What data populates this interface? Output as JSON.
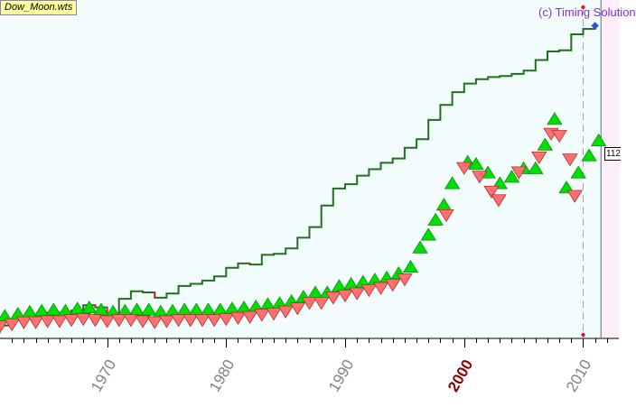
{
  "file_badge": "Dow_Moon.wts",
  "copyright": "(c) Timing Solution",
  "value_tag": "112",
  "colors": {
    "background": "#f2fcfc",
    "future_background": "#fdeefa",
    "price_line": "#207020",
    "price_down": "#e02020",
    "up_triangle": "#00e000",
    "down_triangle": "#ff7070",
    "today_line": "#5a8fa6",
    "highlight_year": "#8b0000"
  },
  "chart_data": {
    "type": "line",
    "title": "",
    "xlabel": "",
    "ylabel": "",
    "x_ticks": [
      "1970",
      "1980",
      "1990",
      "2000",
      "2010"
    ],
    "highlighted_tick": "2000",
    "xlim": [
      1961,
      2013
    ],
    "today_year": 2010,
    "future_start_year": 2011.5,
    "series": [
      {
        "points": [
          [
            1961.0,
            0.0
          ],
          [
            1962.0,
            0.25
          ],
          [
            1963.0,
            0.4
          ],
          [
            1964.0,
            0.5
          ],
          [
            1965.0,
            0.6
          ],
          [
            1966.0,
            0.55
          ],
          [
            1967.0,
            0.7
          ],
          [
            1968.0,
            0.95
          ],
          [
            1969.0,
            0.85
          ],
          [
            1970.0,
            0.5
          ],
          [
            1971.0,
            1.25
          ],
          [
            1972.0,
            1.6
          ],
          [
            1973.0,
            1.55
          ],
          [
            1974.0,
            1.3
          ],
          [
            1975.0,
            1.5
          ],
          [
            1976.0,
            1.85
          ],
          [
            1977.0,
            1.95
          ],
          [
            1978.0,
            2.1
          ],
          [
            1979.0,
            2.3
          ],
          [
            1980.0,
            2.7
          ],
          [
            1981.0,
            2.9
          ],
          [
            1982.0,
            2.85
          ],
          [
            1983.0,
            3.3
          ],
          [
            1984.0,
            3.35
          ],
          [
            1985.0,
            3.6
          ],
          [
            1986.0,
            4.1
          ],
          [
            1987.0,
            4.6
          ],
          [
            1988.0,
            5.6
          ],
          [
            1989.0,
            6.4
          ],
          [
            1990.0,
            6.6
          ],
          [
            1991.0,
            7.0
          ],
          [
            1992.0,
            7.3
          ],
          [
            1993.0,
            7.6
          ],
          [
            1994.0,
            7.8
          ],
          [
            1995.0,
            8.3
          ],
          [
            1996.0,
            8.7
          ],
          [
            1997.0,
            9.6
          ],
          [
            1998.0,
            10.3
          ],
          [
            1999.0,
            10.9
          ],
          [
            2000.0,
            11.3
          ],
          [
            2001.0,
            11.5
          ],
          [
            2002.0,
            11.6
          ],
          [
            2003.0,
            11.65
          ],
          [
            2004.0,
            11.75
          ],
          [
            2005.0,
            11.9
          ],
          [
            2006.0,
            12.4
          ],
          [
            2007.0,
            12.8
          ],
          [
            2008.0,
            12.85
          ],
          [
            2009.0,
            13.6
          ],
          [
            2010.0,
            13.85
          ],
          [
            2011.0,
            14.0
          ]
        ]
      }
    ],
    "up_triangles": [
      [
        1961.4,
        0.4
      ],
      [
        1962.5,
        0.5
      ],
      [
        1963.5,
        0.6
      ],
      [
        1964.5,
        0.65
      ],
      [
        1965.5,
        0.7
      ],
      [
        1966.5,
        0.65
      ],
      [
        1967.5,
        0.75
      ],
      [
        1968.5,
        0.8
      ],
      [
        1969.5,
        0.7
      ],
      [
        1970.5,
        0.6
      ],
      [
        1971.5,
        0.65
      ],
      [
        1972.5,
        0.7
      ],
      [
        1973.5,
        0.7
      ],
      [
        1974.5,
        0.6
      ],
      [
        1975.5,
        0.65
      ],
      [
        1976.5,
        0.7
      ],
      [
        1977.5,
        0.7
      ],
      [
        1978.5,
        0.7
      ],
      [
        1979.5,
        0.7
      ],
      [
        1980.5,
        0.75
      ],
      [
        1981.5,
        0.8
      ],
      [
        1982.5,
        0.85
      ],
      [
        1983.5,
        0.95
      ],
      [
        1984.5,
        1.0
      ],
      [
        1985.5,
        1.1
      ],
      [
        1986.5,
        1.3
      ],
      [
        1987.5,
        1.5
      ],
      [
        1988.5,
        1.5
      ],
      [
        1989.5,
        1.8
      ],
      [
        1990.5,
        1.9
      ],
      [
        1991.5,
        2.0
      ],
      [
        1992.5,
        2.1
      ],
      [
        1993.5,
        2.2
      ],
      [
        1994.5,
        2.4
      ],
      [
        1995.5,
        2.7
      ],
      [
        1996.3,
        3.6
      ],
      [
        1997.0,
        4.2
      ],
      [
        1997.6,
        4.9
      ],
      [
        1998.3,
        5.6
      ],
      [
        1999.0,
        6.6
      ],
      [
        2000.3,
        7.6
      ],
      [
        2001.0,
        7.5
      ],
      [
        2002.0,
        7.1
      ],
      [
        2003.0,
        6.6
      ],
      [
        2004.0,
        6.9
      ],
      [
        2005.0,
        7.3
      ],
      [
        2006.0,
        7.3
      ],
      [
        2006.8,
        8.4
      ],
      [
        2007.6,
        9.6
      ],
      [
        2008.6,
        6.4
      ],
      [
        2009.6,
        7.1
      ],
      [
        2010.5,
        7.9
      ],
      [
        2011.3,
        8.6
      ]
    ],
    "down_triangles": [
      [
        1961.0,
        0.0
      ],
      [
        1962.0,
        0.1
      ],
      [
        1963.0,
        0.2
      ],
      [
        1964.0,
        0.2
      ],
      [
        1965.0,
        0.25
      ],
      [
        1966.0,
        0.25
      ],
      [
        1967.0,
        0.3
      ],
      [
        1968.0,
        0.35
      ],
      [
        1969.0,
        0.3
      ],
      [
        1970.0,
        0.25
      ],
      [
        1971.0,
        0.3
      ],
      [
        1972.0,
        0.3
      ],
      [
        1973.0,
        0.25
      ],
      [
        1974.0,
        0.2
      ],
      [
        1975.0,
        0.25
      ],
      [
        1976.0,
        0.3
      ],
      [
        1977.0,
        0.3
      ],
      [
        1978.0,
        0.3
      ],
      [
        1979.0,
        0.3
      ],
      [
        1980.0,
        0.35
      ],
      [
        1981.0,
        0.4
      ],
      [
        1982.0,
        0.45
      ],
      [
        1983.0,
        0.55
      ],
      [
        1984.0,
        0.6
      ],
      [
        1985.0,
        0.7
      ],
      [
        1986.0,
        0.85
      ],
      [
        1987.0,
        1.1
      ],
      [
        1988.0,
        1.1
      ],
      [
        1989.0,
        1.35
      ],
      [
        1990.0,
        1.45
      ],
      [
        1991.0,
        1.55
      ],
      [
        1992.0,
        1.7
      ],
      [
        1993.0,
        1.8
      ],
      [
        1994.0,
        1.95
      ],
      [
        1995.0,
        2.2
      ],
      [
        1998.5,
        5.2
      ],
      [
        2000.0,
        7.4
      ],
      [
        2001.3,
        7.0
      ],
      [
        2002.3,
        6.3
      ],
      [
        2002.9,
        5.9
      ],
      [
        2004.6,
        7.2
      ],
      [
        2006.3,
        7.9
      ],
      [
        2007.3,
        9.0
      ],
      [
        2008.0,
        8.9
      ],
      [
        2008.9,
        7.8
      ],
      [
        2009.3,
        6.1
      ]
    ]
  },
  "y_range": [
    -0.6,
    15.2
  ]
}
